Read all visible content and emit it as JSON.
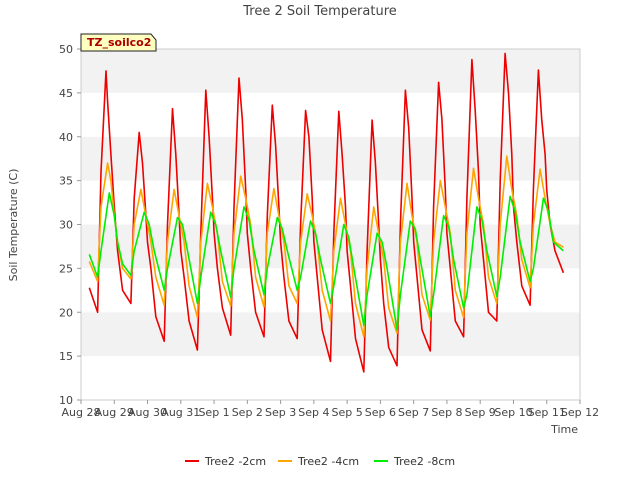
{
  "chart_data": {
    "type": "line",
    "title": "Tree 2 Soil Temperature",
    "xlabel": "Time",
    "ylabel": "Soil Temperature (C)",
    "annotation": "TZ_soilco2",
    "ylim": [
      10,
      50
    ],
    "yticks": [
      10,
      15,
      20,
      25,
      30,
      35,
      40,
      45,
      50
    ],
    "xlim_days": [
      0,
      15
    ],
    "xtick_labels": [
      "Aug 28",
      "Aug 29",
      "Aug 30",
      "Aug 31",
      "Sep 1",
      "Sep 2",
      "Sep 3",
      "Sep 4",
      "Sep 5",
      "Sep 6",
      "Sep 7",
      "Sep 8",
      "Sep 9",
      "Sep 10",
      "Sep 11",
      "Sep 12"
    ],
    "grid": "horizontal bands",
    "legend_position": "bottom",
    "series": [
      {
        "name": "Tree2 -2cm",
        "color": "#ee0000",
        "x": [
          0.25,
          0.5,
          0.6,
          0.75,
          0.8,
          0.9,
          1.0,
          1.1,
          1.25,
          1.5,
          1.6,
          1.75,
          1.85,
          1.95,
          2.0,
          2.1,
          2.25,
          2.5,
          2.6,
          2.75,
          2.85,
          2.95,
          3.0,
          3.1,
          3.25,
          3.5,
          3.6,
          3.75,
          3.85,
          3.95,
          4.0,
          4.1,
          4.25,
          4.5,
          4.6,
          4.75,
          4.85,
          4.95,
          5.0,
          5.1,
          5.25,
          5.5,
          5.6,
          5.75,
          5.85,
          5.95,
          6.0,
          6.1,
          6.25,
          6.5,
          6.6,
          6.75,
          6.85,
          6.95,
          7.0,
          7.1,
          7.25,
          7.5,
          7.6,
          7.75,
          7.85,
          7.95,
          8.0,
          8.1,
          8.25,
          8.5,
          8.6,
          8.75,
          8.85,
          8.95,
          9.0,
          9.1,
          9.25,
          9.5,
          9.6,
          9.75,
          9.85,
          9.95,
          10.0,
          10.1,
          10.25,
          10.5,
          10.6,
          10.75,
          10.85,
          10.95,
          11.0,
          11.1,
          11.25,
          11.5,
          11.6,
          11.75,
          11.85,
          11.95,
          12.0,
          12.1,
          12.25,
          12.5,
          12.6,
          12.75,
          12.85,
          12.95,
          13.0,
          13.1,
          13.25,
          13.5,
          13.6,
          13.75,
          13.85,
          13.95,
          14.0,
          14.1,
          14.25,
          14.5
        ],
        "values": [
          22.8,
          20.0,
          36,
          47.5,
          44,
          38,
          32,
          27,
          22.5,
          21.0,
          33,
          40.5,
          37,
          31,
          28,
          25,
          19.5,
          16.7,
          30,
          43.2,
          38,
          31,
          27,
          24,
          19.0,
          15.7,
          29,
          45.3,
          40,
          33,
          29,
          25,
          20.5,
          17.4,
          32,
          46.7,
          42,
          34,
          29,
          25,
          20.0,
          17.2,
          31,
          43.6,
          39,
          32,
          28,
          24,
          19.0,
          17.0,
          30,
          43.0,
          40,
          33,
          28,
          24,
          18.0,
          14.4,
          29,
          42.9,
          38,
          32,
          27,
          23,
          17.0,
          13.2,
          27,
          41.9,
          37,
          30,
          26,
          21,
          16.0,
          13.9,
          30,
          45.3,
          41,
          33,
          28,
          24,
          18.0,
          15.6,
          32,
          46.2,
          42,
          34,
          29,
          25,
          19.0,
          17.2,
          33,
          48.8,
          43,
          36,
          30,
          26,
          20.0,
          19.0,
          35,
          49.5,
          45,
          38,
          32,
          28,
          23.0,
          20.8,
          34,
          47.6,
          42,
          38,
          34,
          30,
          27.0,
          24.5
        ]
      },
      {
        "name": "Tree2 -4cm",
        "color": "#ffa500",
        "x": [
          0.25,
          0.5,
          0.6,
          0.8,
          0.9,
          1.0,
          1.1,
          1.25,
          1.5,
          1.6,
          1.8,
          1.95,
          2.1,
          2.25,
          2.5,
          2.6,
          2.8,
          2.95,
          3.1,
          3.25,
          3.5,
          3.6,
          3.8,
          3.95,
          4.1,
          4.25,
          4.5,
          4.6,
          4.8,
          4.95,
          5.1,
          5.25,
          5.5,
          5.6,
          5.8,
          5.95,
          6.1,
          6.25,
          6.5,
          6.6,
          6.8,
          6.95,
          7.1,
          7.25,
          7.5,
          7.6,
          7.8,
          7.95,
          8.1,
          8.25,
          8.5,
          8.6,
          8.8,
          8.95,
          9.1,
          9.25,
          9.5,
          9.6,
          9.8,
          9.95,
          10.1,
          10.25,
          10.5,
          10.6,
          10.8,
          10.95,
          11.1,
          11.25,
          11.5,
          11.6,
          11.8,
          11.95,
          12.1,
          12.25,
          12.5,
          12.6,
          12.8,
          12.95,
          13.1,
          13.25,
          13.5,
          13.6,
          13.8,
          13.95,
          14.1,
          14.25,
          14.5
        ],
        "values": [
          25.8,
          23.5,
          32,
          37.0,
          35,
          31,
          28,
          25.0,
          23.8,
          30,
          34.0,
          31,
          28,
          24.0,
          20.8,
          28,
          34.0,
          31,
          28,
          23.0,
          19.4,
          28,
          34.7,
          32,
          29,
          23.5,
          20.7,
          29,
          35.5,
          33,
          30,
          24.0,
          20.6,
          29,
          34.1,
          31,
          28,
          23.0,
          21.0,
          28,
          33.5,
          31,
          28,
          22.5,
          19.0,
          27,
          33.0,
          30,
          27,
          21.0,
          17.2,
          25,
          32.0,
          29,
          26,
          20.5,
          17.6,
          28,
          34.7,
          31,
          28,
          22.0,
          19.1,
          28,
          35.0,
          32,
          29,
          22.5,
          19.4,
          29,
          36.4,
          33,
          30,
          24.0,
          21.0,
          30,
          37.8,
          34,
          31,
          26.0,
          22.8,
          30,
          36.3,
          33,
          30,
          28.0,
          27.4
        ]
      },
      {
        "name": "Tree2 -8cm",
        "color": "#00ee00",
        "x": [
          0.25,
          0.5,
          0.6,
          0.85,
          1.0,
          1.1,
          1.25,
          1.5,
          1.6,
          1.9,
          2.05,
          2.2,
          2.5,
          2.6,
          2.9,
          3.05,
          3.2,
          3.5,
          3.6,
          3.9,
          4.05,
          4.2,
          4.5,
          4.6,
          4.9,
          5.05,
          5.2,
          5.5,
          5.6,
          5.9,
          6.05,
          6.2,
          6.5,
          6.6,
          6.9,
          7.05,
          7.2,
          7.5,
          7.6,
          7.9,
          8.05,
          8.2,
          8.5,
          8.6,
          8.9,
          9.05,
          9.2,
          9.5,
          9.6,
          9.9,
          10.05,
          10.2,
          10.5,
          10.6,
          10.9,
          11.05,
          11.2,
          11.5,
          11.6,
          11.9,
          12.05,
          12.2,
          12.5,
          12.6,
          12.9,
          13.05,
          13.2,
          13.5,
          13.6,
          13.9,
          14.05,
          14.2,
          14.5
        ],
        "values": [
          26.6,
          24.0,
          27,
          33.6,
          31.0,
          28,
          25.5,
          24.2,
          27,
          31.4,
          30.0,
          27,
          22.5,
          25,
          30.8,
          30.0,
          27,
          21.0,
          24,
          31.4,
          30.0,
          27,
          21.7,
          25,
          32.0,
          30.5,
          27,
          22.0,
          25,
          30.8,
          29.5,
          27,
          22.5,
          24,
          30.4,
          29.0,
          26,
          21.0,
          23,
          30.0,
          28.5,
          25,
          18.5,
          22,
          29.0,
          28.0,
          25,
          18.0,
          22,
          30.4,
          29.5,
          26,
          19.5,
          22,
          31.0,
          29.8,
          26,
          20.5,
          22,
          32.0,
          30.5,
          27,
          21.8,
          24,
          33.2,
          31.5,
          28,
          23.5,
          25,
          33.0,
          31.5,
          28,
          27.0
        ]
      }
    ]
  }
}
